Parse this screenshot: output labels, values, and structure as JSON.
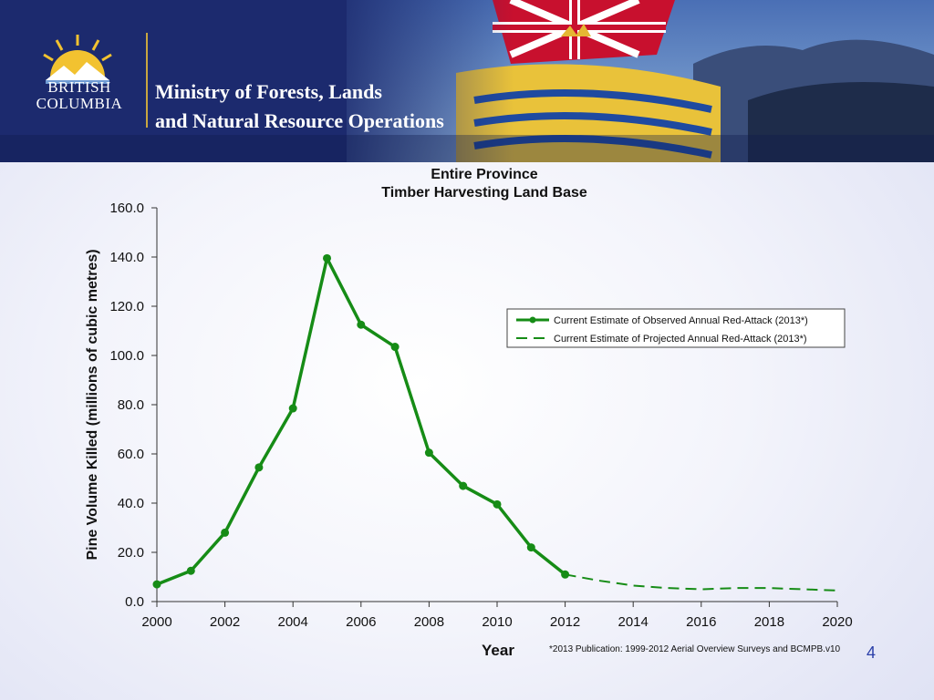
{
  "header": {
    "logo_line1": "BRITISH",
    "logo_line2": "COLUMBIA",
    "ministry_line1": "Ministry of Forests, Lands",
    "ministry_line2": "and Natural Resource Operations"
  },
  "chart_data": {
    "type": "line",
    "title": "Entire Province",
    "subtitle": "Timber Harvesting Land Base",
    "xlabel": "Year",
    "ylabel": "Pine Volume Killed (millions of cubic metres)",
    "xlim": [
      2000,
      2020
    ],
    "ylim": [
      0,
      160
    ],
    "x_ticks": [
      "2000",
      "2002",
      "2004",
      "2006",
      "2008",
      "2010",
      "2012",
      "2014",
      "2016",
      "2018",
      "2020"
    ],
    "y_ticks": [
      "0.0",
      "20.0",
      "40.0",
      "60.0",
      "80.0",
      "100.0",
      "120.0",
      "140.0",
      "160.0"
    ],
    "grid": false,
    "legend_position": "right",
    "series": [
      {
        "name": "Current Estimate of Observed Annual Red-Attack (2013*)",
        "style": "solid-markers",
        "color": "#168c16",
        "x": [
          2000,
          2001,
          2002,
          2003,
          2004,
          2005,
          2006,
          2007,
          2008,
          2009,
          2010,
          2011,
          2012
        ],
        "y": [
          7,
          12.5,
          28,
          54.5,
          78.5,
          139.5,
          112.5,
          103.5,
          60.5,
          47,
          39.5,
          22,
          11
        ]
      },
      {
        "name": "Current Estimate of Projected Annual Red-Attack (2013*)",
        "style": "dashed",
        "color": "#168c16",
        "x": [
          2012,
          2013,
          2014,
          2015,
          2016,
          2017,
          2018,
          2019,
          2020
        ],
        "y": [
          11,
          8.5,
          6.5,
          5.5,
          5,
          5.5,
          5.5,
          5,
          4.5
        ]
      }
    ],
    "footnote": "*2013 Publication: 1999-2012 Aerial Overview Surveys and BCMPB.v10"
  },
  "page_number": "4"
}
